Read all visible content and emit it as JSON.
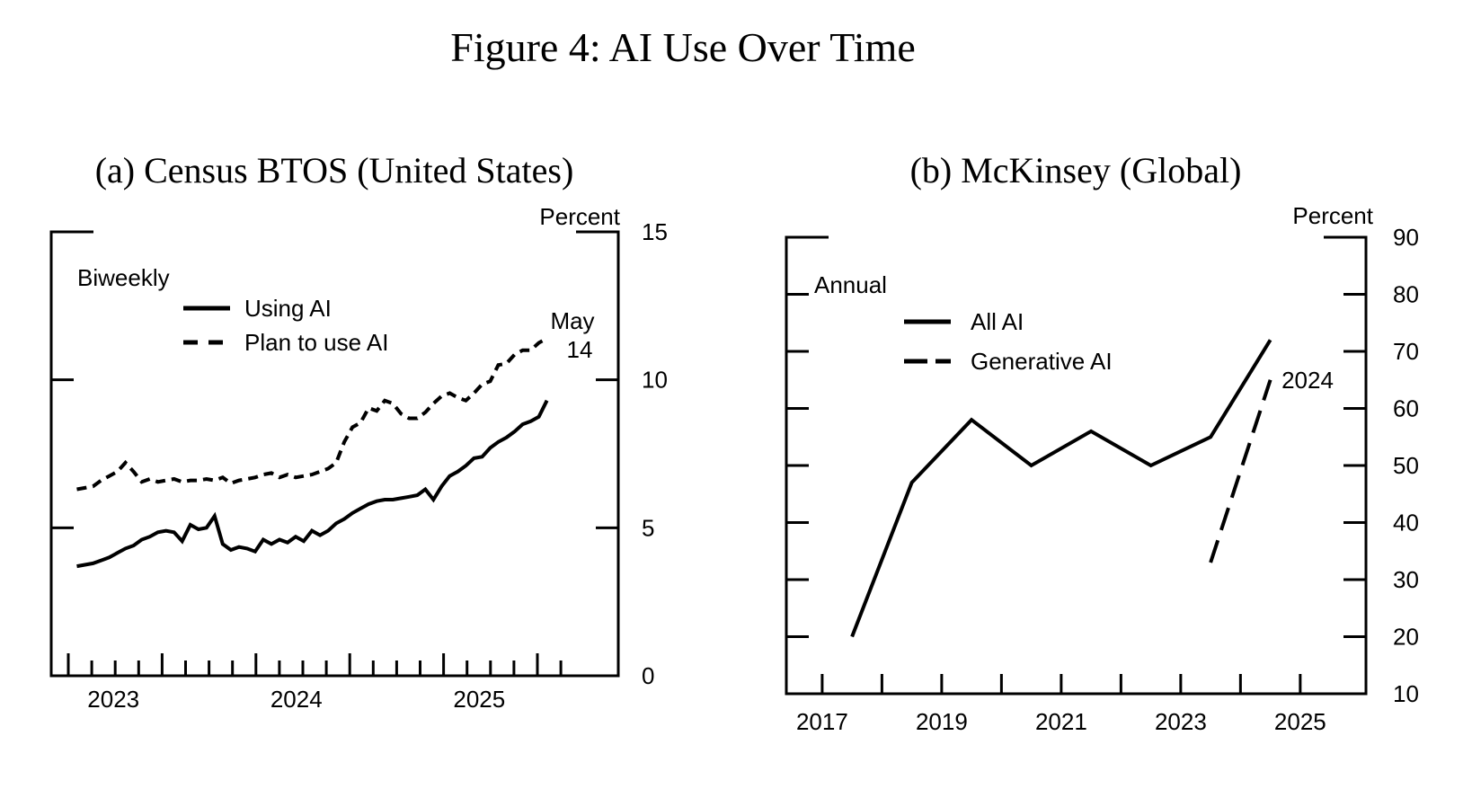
{
  "figure": {
    "title": "Figure 4: AI Use Over Time"
  },
  "chart_data": [
    {
      "type": "line",
      "title": "(a) Census BTOS (United States)",
      "frequency_label": "Biweekly",
      "unit_label": "Percent",
      "annotation_lines": [
        "May",
        "14"
      ],
      "ylim": [
        0,
        15
      ],
      "yticks": [
        0,
        5,
        10,
        15
      ],
      "xlim": [
        2022.66,
        2025.76
      ],
      "x_tick_years": [
        2023,
        2024,
        2025
      ],
      "x_tick_labels": [
        "2023",
        "2024",
        "2025"
      ],
      "legend_position": "top-left-inside",
      "grid": false,
      "series": [
        {
          "name": "Using AI",
          "style": "solid",
          "x_start": 2022.8,
          "x_end": 2025.37,
          "values": [
            3.7,
            3.75,
            3.8,
            3.9,
            4.0,
            4.15,
            4.3,
            4.4,
            4.6,
            4.7,
            4.85,
            4.9,
            4.85,
            4.55,
            5.1,
            4.95,
            5.0,
            5.4,
            4.45,
            4.25,
            4.35,
            4.3,
            4.2,
            4.6,
            4.45,
            4.6,
            4.5,
            4.7,
            4.55,
            4.9,
            4.75,
            4.9,
            5.15,
            5.3,
            5.5,
            5.65,
            5.8,
            5.9,
            5.95,
            5.95,
            6.0,
            6.05,
            6.1,
            6.3,
            5.95,
            6.4,
            6.75,
            6.9,
            7.1,
            7.35,
            7.4,
            7.7,
            7.9,
            8.05,
            8.25,
            8.5,
            8.6,
            8.75,
            9.3
          ]
        },
        {
          "name": "Plan to use AI",
          "style": "dashed",
          "x_start": 2022.8,
          "x_end": 2025.37,
          "values": [
            6.3,
            6.35,
            6.4,
            6.6,
            6.75,
            6.9,
            7.2,
            6.9,
            6.55,
            6.65,
            6.55,
            6.6,
            6.65,
            6.55,
            6.6,
            6.6,
            6.65,
            6.6,
            6.7,
            6.5,
            6.6,
            6.65,
            6.7,
            6.8,
            6.85,
            6.7,
            6.8,
            6.7,
            6.75,
            6.8,
            6.9,
            7.0,
            7.2,
            7.9,
            8.4,
            8.55,
            9.05,
            8.95,
            9.3,
            9.2,
            8.85,
            8.7,
            8.7,
            8.9,
            9.2,
            9.45,
            9.55,
            9.4,
            9.3,
            9.55,
            9.85,
            9.95,
            10.5,
            10.55,
            10.85,
            11.0,
            11.0,
            11.25,
            11.4
          ]
        }
      ]
    },
    {
      "type": "line",
      "title": "(b) McKinsey (Global)",
      "frequency_label": "Annual",
      "unit_label": "Percent",
      "annotation_lines": [
        "2024"
      ],
      "ylim": [
        10,
        90
      ],
      "yticks": [
        10,
        20,
        30,
        40,
        50,
        60,
        70,
        80,
        90
      ],
      "xlim": [
        2016.4,
        2026.1
      ],
      "x_tick_years": [
        2017,
        2018,
        2019,
        2020,
        2021,
        2022,
        2023,
        2024,
        2025
      ],
      "x_tick_labels": [
        "2017",
        "",
        "2019",
        "",
        "2021",
        "",
        "2023",
        "",
        "2025"
      ],
      "legend_position": "top-left-inside",
      "grid": false,
      "series": [
        {
          "name": "All AI",
          "style": "solid",
          "x": [
            2017.5,
            2018.5,
            2019.5,
            2020.5,
            2021.5,
            2022.5,
            2023.5,
            2024.5
          ],
          "values": [
            20,
            47,
            58,
            50,
            56,
            50,
            55,
            72
          ]
        },
        {
          "name": "Generative AI",
          "style": "long-dashed",
          "x": [
            2023.5,
            2024.5
          ],
          "values": [
            33,
            65
          ]
        }
      ]
    }
  ]
}
